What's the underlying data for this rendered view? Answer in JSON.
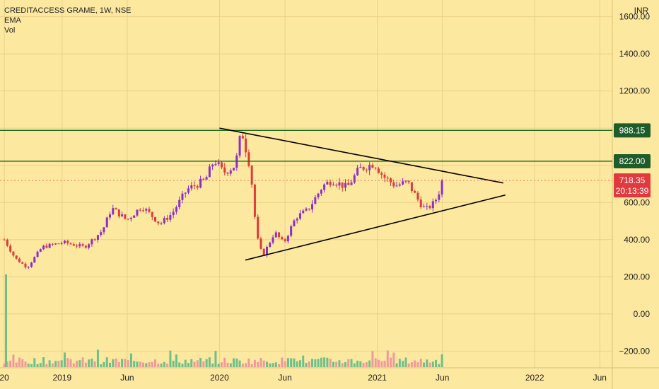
{
  "header": {
    "symbol_line": "CREDITACCESS GRAME, 1W, NSE",
    "indicator_ema": "EMA",
    "indicator_vol": "Vol",
    "currency": "INR"
  },
  "price_badges": {
    "upper_resistance": "988.15",
    "lower_resistance": "822.00",
    "last_price": "718.35",
    "countdown": "20:13:39"
  },
  "colors": {
    "background": "#fde8a0",
    "grid": "#e9d18a",
    "up_candle": "#8b2fc9",
    "down_candle": "#e03a3a",
    "vol_up": "#6cc08b",
    "vol_down": "#ef9a9a",
    "resistance_line": "#1b6e1b",
    "badge_green": "#1e5c2a",
    "badge_red": "#e0393e",
    "trendline": "#000000"
  },
  "chart_data": {
    "type": "candlestick",
    "title": "CREDITACCESS GRAME, 1W, NSE",
    "interval": "1W",
    "y_axis_unit": "INR",
    "y_axis_side": "right",
    "ylim": [
      -290,
      1690
    ],
    "y_ticks": [
      -200,
      0,
      200,
      400,
      600,
      1200,
      1400,
      1600
    ],
    "y_tick_labels": [
      "−200.00",
      "0.00",
      "200.00",
      "400.00",
      "600.00",
      "1200.00",
      "1400.00",
      "1600.00"
    ],
    "x_range": [
      "2018-08-10",
      "2022-06-30"
    ],
    "x_ticks": [
      {
        "date": "2018-08-20",
        "label": "20"
      },
      {
        "date": "2019-01-01",
        "label": "2019"
      },
      {
        "date": "2019-06-01",
        "label": "Jun"
      },
      {
        "date": "2020-01-01",
        "label": "2020"
      },
      {
        "date": "2020-06-01",
        "label": "Jun"
      },
      {
        "date": "2021-01-01",
        "label": "2021"
      },
      {
        "date": "2021-06-01",
        "label": "Jun"
      },
      {
        "date": "2022-01-01",
        "label": "2022"
      },
      {
        "date": "2022-06-01",
        "label": "Jun"
      }
    ],
    "grid": true,
    "horizontal_lines": [
      988.15,
      822.0
    ],
    "last_price": 718.35,
    "trendlines": [
      {
        "start": {
          "date": "2020-01-01",
          "price": 1000
        },
        "end": {
          "date": "2021-10-20",
          "price": 705
        }
      },
      {
        "start": {
          "date": "2020-03-01",
          "price": 290
        },
        "end": {
          "date": "2021-10-25",
          "price": 640
        }
      }
    ],
    "weekly_close_path": [
      {
        "date": "2018-08-20",
        "close": 400
      },
      {
        "date": "2018-09-14",
        "close": 300
      },
      {
        "date": "2018-10-12",
        "close": 250
      },
      {
        "date": "2018-11-16",
        "close": 360
      },
      {
        "date": "2019-01-04",
        "close": 385
      },
      {
        "date": "2019-02-22",
        "close": 360
      },
      {
        "date": "2019-04-05",
        "close": 450
      },
      {
        "date": "2019-04-26",
        "close": 570
      },
      {
        "date": "2019-05-31",
        "close": 505
      },
      {
        "date": "2019-07-05",
        "close": 580
      },
      {
        "date": "2019-08-16",
        "close": 485
      },
      {
        "date": "2019-09-13",
        "close": 540
      },
      {
        "date": "2019-10-18",
        "close": 670
      },
      {
        "date": "2019-11-29",
        "close": 720
      },
      {
        "date": "2019-12-20",
        "close": 830
      },
      {
        "date": "2020-01-10",
        "close": 760
      },
      {
        "date": "2020-02-07",
        "close": 800
      },
      {
        "date": "2020-02-21",
        "close": 990
      },
      {
        "date": "2020-03-13",
        "close": 780
      },
      {
        "date": "2020-03-27",
        "close": 420
      },
      {
        "date": "2020-04-10",
        "close": 310
      },
      {
        "date": "2020-05-08",
        "close": 440
      },
      {
        "date": "2020-05-29",
        "close": 380
      },
      {
        "date": "2020-06-26",
        "close": 520
      },
      {
        "date": "2020-07-24",
        "close": 560
      },
      {
        "date": "2020-08-28",
        "close": 690
      },
      {
        "date": "2020-09-18",
        "close": 720
      },
      {
        "date": "2020-10-23",
        "close": 680
      },
      {
        "date": "2020-11-20",
        "close": 780
      },
      {
        "date": "2020-12-25",
        "close": 810
      },
      {
        "date": "2021-01-15",
        "close": 740
      },
      {
        "date": "2021-02-12",
        "close": 690
      },
      {
        "date": "2021-03-12",
        "close": 710
      },
      {
        "date": "2021-04-09",
        "close": 600
      },
      {
        "date": "2021-04-23",
        "close": 560
      },
      {
        "date": "2021-05-14",
        "close": 600
      },
      {
        "date": "2021-06-04",
        "close": 718.35
      }
    ],
    "volume_spike": {
      "date": "2018-08-24",
      "relative_height": 1.0
    }
  }
}
